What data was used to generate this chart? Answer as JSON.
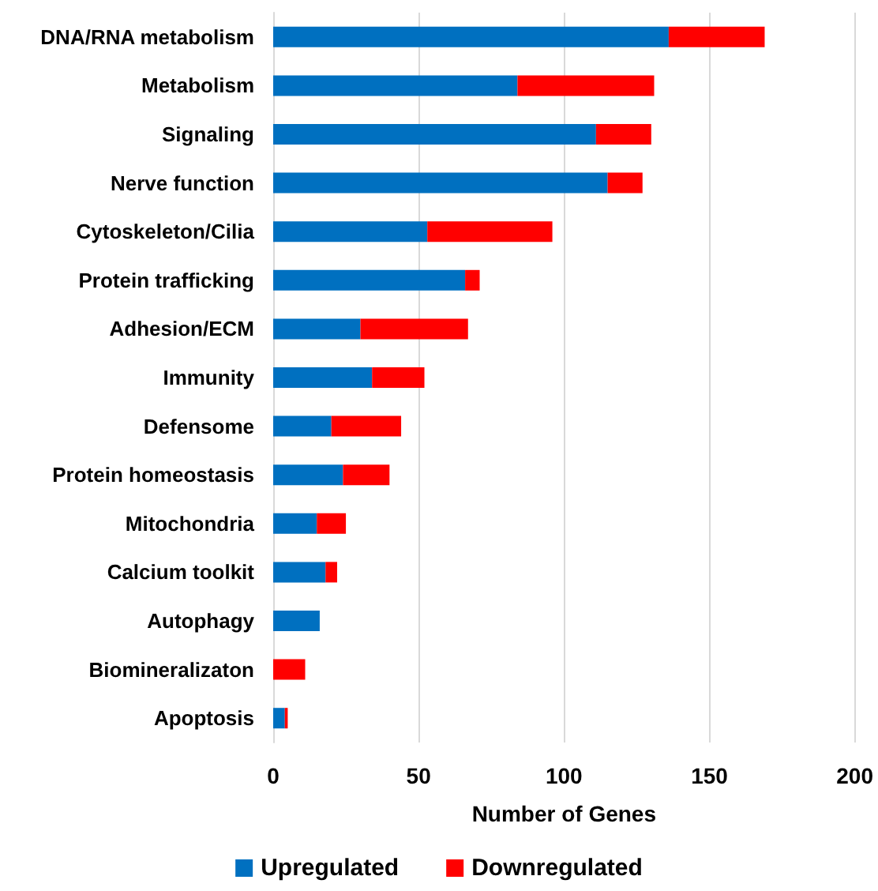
{
  "chart_data": {
    "type": "bar",
    "orientation": "horizontal",
    "stacked": true,
    "xlabel": "Number of Genes",
    "categories": [
      "DNA/RNA metabolism",
      "Metabolism",
      "Signaling",
      "Nerve function",
      "Cytoskeleton/Cilia",
      "Protein trafficking",
      "Adhesion/ECM",
      "Immunity",
      "Defensome",
      "Protein homeostasis",
      "Mitochondria",
      "Calcium toolkit",
      "Autophagy",
      "Biomineralizaton",
      "Apoptosis"
    ],
    "series": [
      {
        "name": "Upregulated",
        "color": "#0070c0",
        "values": [
          136,
          84,
          111,
          115,
          53,
          66,
          30,
          34,
          20,
          24,
          15,
          18,
          16,
          0,
          4
        ]
      },
      {
        "name": "Downregulated",
        "color": "#ff0000",
        "values": [
          33,
          47,
          19,
          12,
          43,
          5,
          37,
          18,
          24,
          16,
          10,
          4,
          0,
          11,
          1
        ]
      }
    ],
    "xlim": [
      0,
      200
    ],
    "xticks": [
      0,
      50,
      100,
      150,
      200
    ],
    "grid": "x",
    "legend": "bottom"
  }
}
